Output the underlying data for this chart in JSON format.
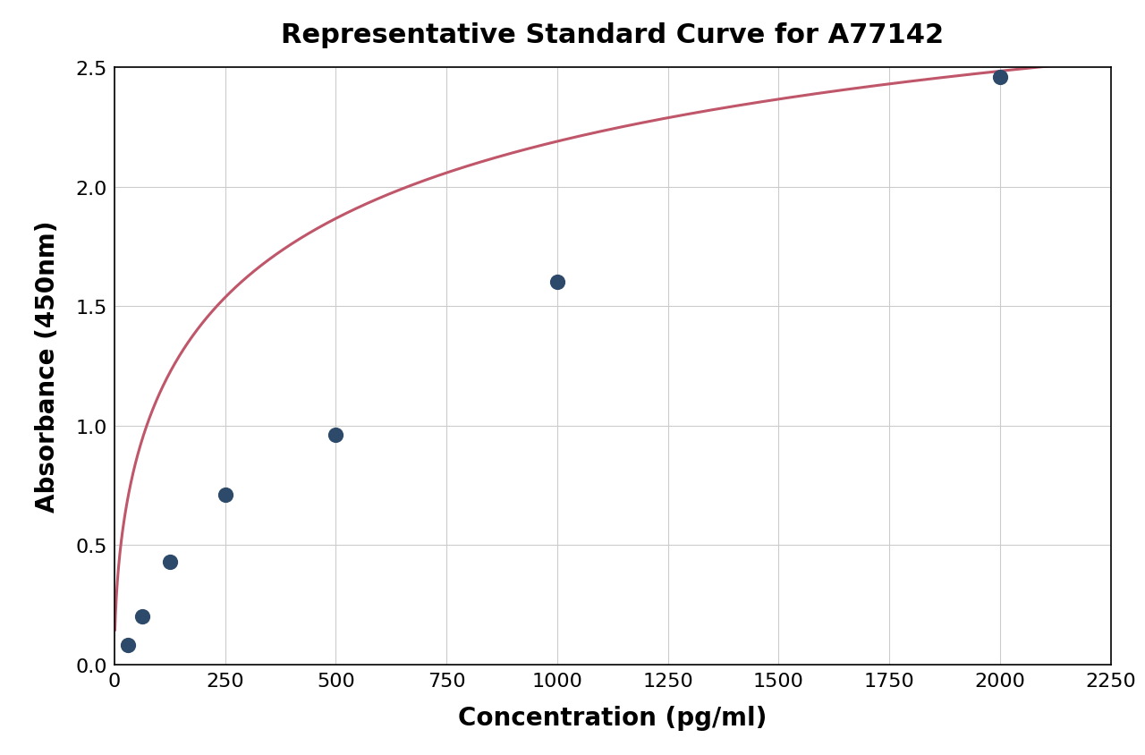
{
  "title": "Representative Standard Curve for A77142",
  "xlabel": "Concentration (pg/ml)",
  "ylabel": "Absorbance (450nm)",
  "data_x": [
    31.25,
    62.5,
    125,
    250,
    500,
    1000,
    2000
  ],
  "data_y": [
    0.08,
    0.2,
    0.43,
    0.71,
    0.96,
    1.6,
    2.46
  ],
  "xlim": [
    0,
    2250
  ],
  "ylim": [
    0,
    2.5
  ],
  "xticks": [
    0,
    250,
    500,
    750,
    1000,
    1250,
    1500,
    1750,
    2000,
    2250
  ],
  "yticks": [
    0.0,
    0.5,
    1.0,
    1.5,
    2.0,
    2.5
  ],
  "dot_color": "#2d4a6b",
  "curve_color": "#c0566a",
  "grid_color": "#cccccc",
  "bg_color": "#ffffff",
  "title_fontsize": 22,
  "axis_label_fontsize": 20,
  "tick_fontsize": 16,
  "dot_size": 130,
  "curve_linewidth": 2.2
}
